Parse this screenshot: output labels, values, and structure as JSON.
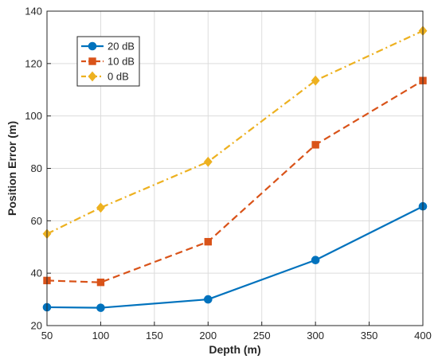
{
  "chart_data": {
    "type": "line",
    "x": [
      50,
      100,
      200,
      300,
      400
    ],
    "xlabel": "Depth (m)",
    "ylabel": "Position Error (m)",
    "xlim": [
      50,
      400
    ],
    "ylim": [
      20,
      140
    ],
    "xticks": [
      50,
      100,
      150,
      200,
      250,
      300,
      350,
      400
    ],
    "yticks": [
      20,
      40,
      60,
      80,
      100,
      120,
      140
    ],
    "grid": true,
    "legend_position": "top-left",
    "series": [
      {
        "name": "20 dB",
        "values": [
          27,
          26.8,
          30,
          45,
          65.5
        ],
        "color": "#0072BD",
        "marker": "circle",
        "dash": "solid"
      },
      {
        "name": "10 dB",
        "values": [
          37.2,
          36.5,
          52,
          89,
          113.5
        ],
        "color": "#D95319",
        "marker": "square",
        "dash": "dashed"
      },
      {
        "name": "0 dB",
        "values": [
          55,
          65,
          82.5,
          113.5,
          132.5
        ],
        "color": "#EDB120",
        "marker": "diamond",
        "dash": "dashdot"
      }
    ]
  }
}
